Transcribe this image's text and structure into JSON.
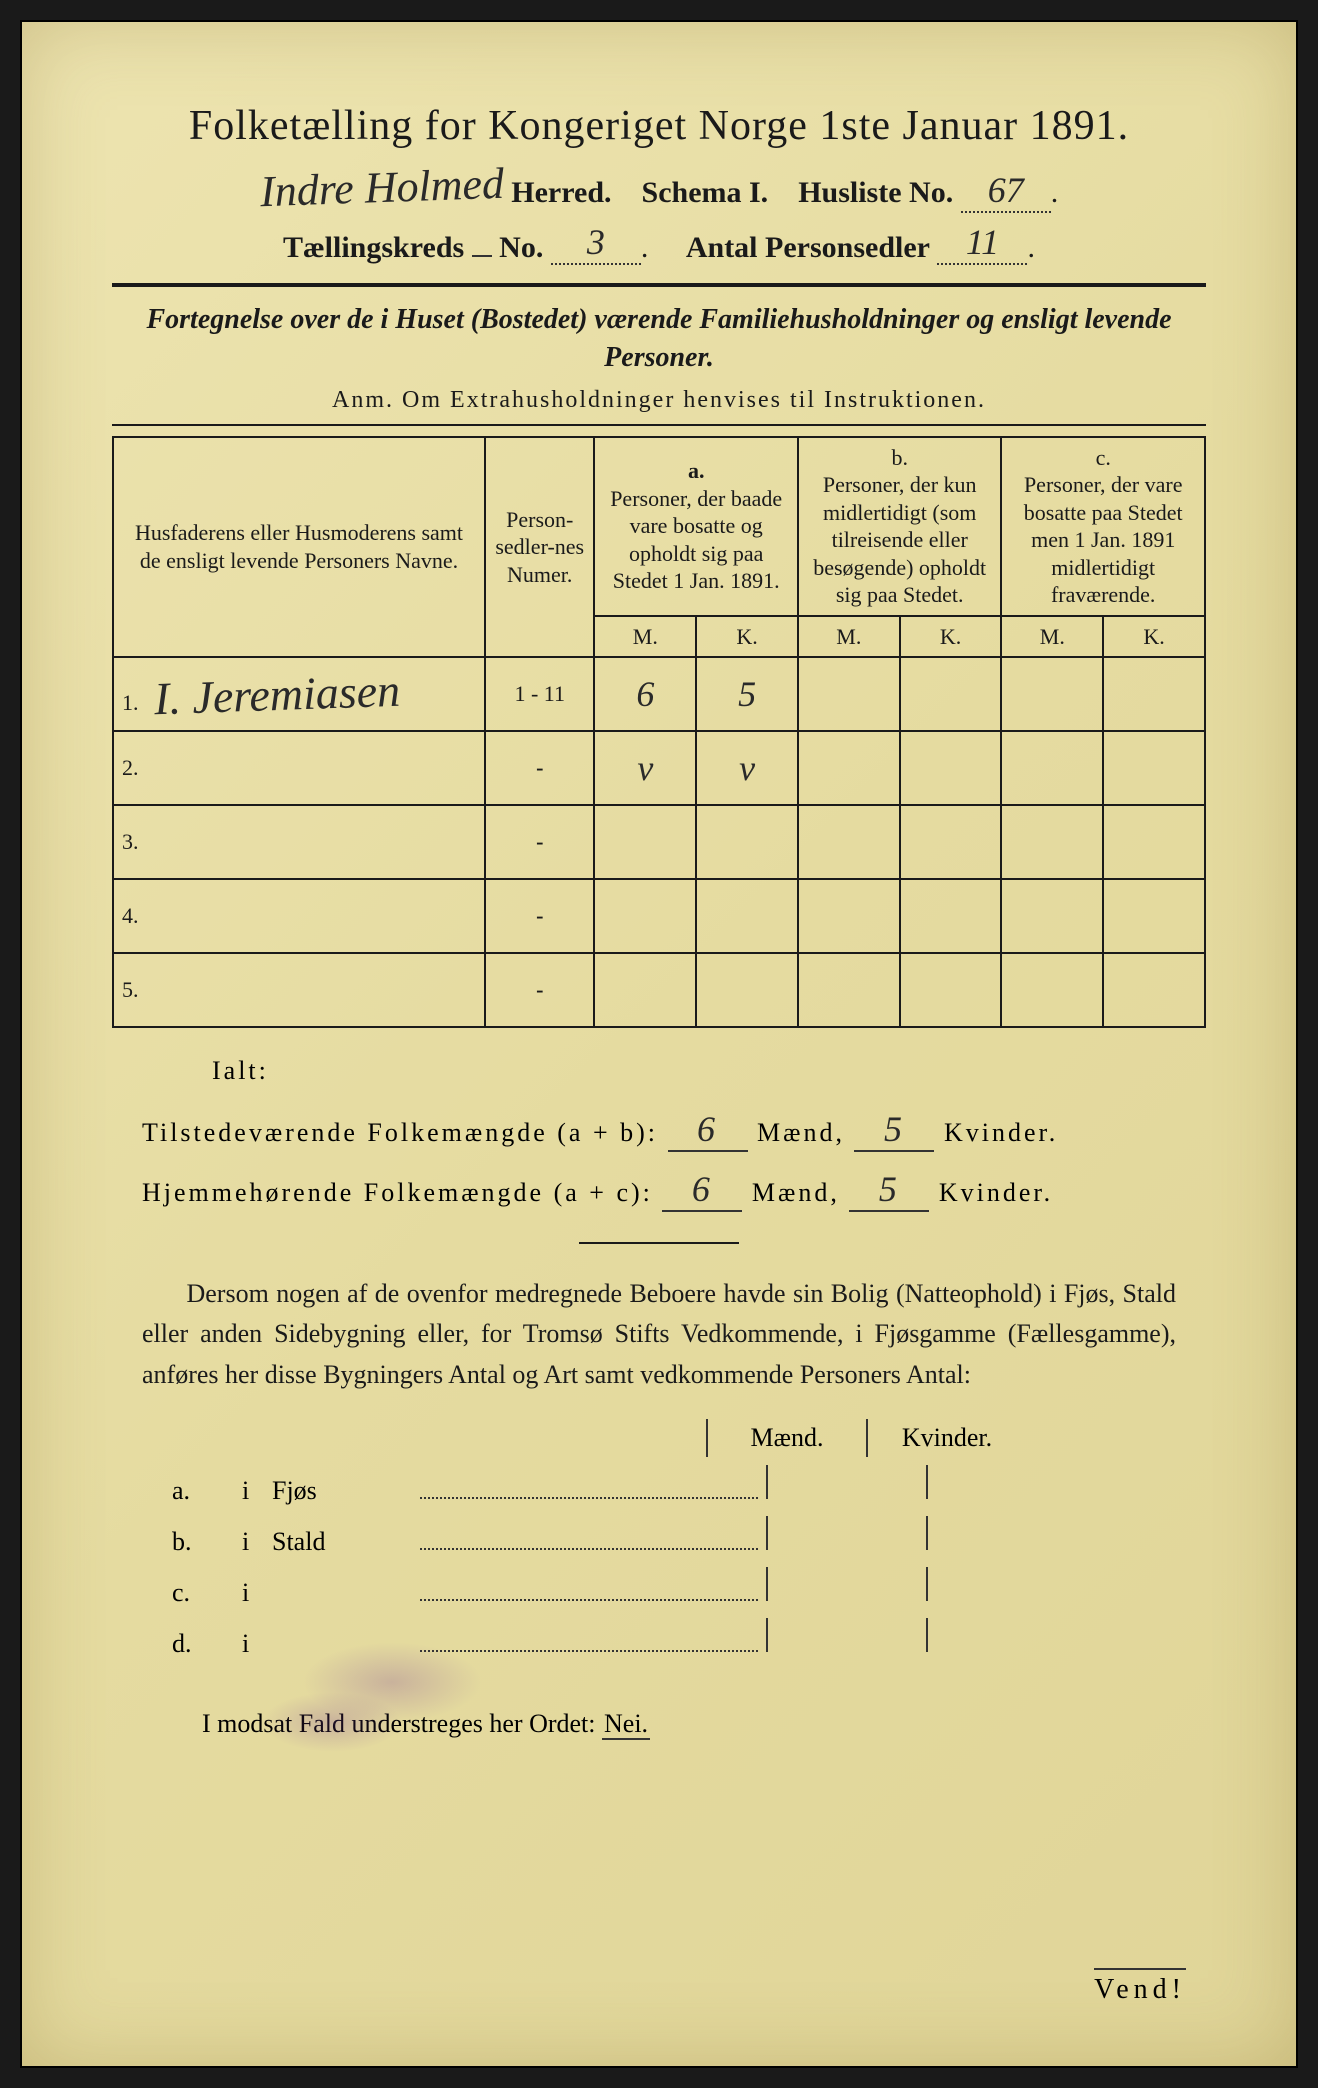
{
  "document_bg": "#e8dfa8",
  "text_color": "#1a1a1a",
  "border_color": "#1a1a1a",
  "title": "Folketælling for Kongeriget Norge 1ste Januar 1891.",
  "header": {
    "herred_handwritten": "Indre Holmed",
    "herred_label": "Herred.",
    "schema_label": "Schema I.",
    "husliste_label": "Husliste No.",
    "husliste_value": "67",
    "kreds_label": "Tællingskreds",
    "kreds_no_label": "No.",
    "kreds_value": "3",
    "antal_label": "Antal Personsedler",
    "antal_value": "11"
  },
  "fortegnelse": {
    "line": "Fortegnelse over de i Huset (Bostedet) værende Familiehusholdninger og ensligt levende Personer.",
    "anm": "Anm.  Om Extrahusholdninger henvises til Instruktionen."
  },
  "table": {
    "col_names_header": "Husfaderens eller Husmoderens samt de ensligt levende Personers Navne.",
    "col_num_header": "Person-sedler-nes Numer.",
    "col_a_label": "a.",
    "col_a_header": "Personer, der baade vare bosatte og opholdt sig paa Stedet 1 Jan. 1891.",
    "col_b_label": "b.",
    "col_b_header": "Personer, der kun midlertidigt (som tilreisende eller besøgende) opholdt sig paa Stedet.",
    "col_c_label": "c.",
    "col_c_header": "Personer, der vare bosatte paa Stedet men 1 Jan. 1891 midlertidigt fraværende.",
    "m_label": "M.",
    "k_label": "K.",
    "rows": [
      {
        "n": "1.",
        "name": "I. Jeremiasen",
        "num": "1 - 11",
        "a_m": "6",
        "a_k": "5",
        "b_m": "",
        "b_k": "",
        "c_m": "",
        "c_k": ""
      },
      {
        "n": "2.",
        "name": "",
        "num": "-",
        "a_m": "v",
        "a_k": "v",
        "b_m": "",
        "b_k": "",
        "c_m": "",
        "c_k": ""
      },
      {
        "n": "3.",
        "name": "",
        "num": "-",
        "a_m": "",
        "a_k": "",
        "b_m": "",
        "b_k": "",
        "c_m": "",
        "c_k": ""
      },
      {
        "n": "4.",
        "name": "",
        "num": "-",
        "a_m": "",
        "a_k": "",
        "b_m": "",
        "b_k": "",
        "c_m": "",
        "c_k": ""
      },
      {
        "n": "5.",
        "name": "",
        "num": "-",
        "a_m": "",
        "a_k": "",
        "b_m": "",
        "b_k": "",
        "c_m": "",
        "c_k": ""
      }
    ]
  },
  "totals": {
    "ialt_label": "Ialt:",
    "line1_label": "Tilstedeværende Folkemængde (a + b):",
    "line1_m": "6",
    "line1_k": "5",
    "line2_label": "Hjemmehørende Folkemængde (a + c):",
    "line2_m": "6",
    "line2_k": "5",
    "maend_label": "Mænd,",
    "kvinder_label": "Kvinder."
  },
  "dersom_text": "Dersom nogen af de ovenfor medregnede Beboere havde sin Bolig (Natteophold) i Fjøs, Stald eller anden Sidebygning eller, for Tromsø Stifts Vedkommende, i Fjøsgamme (Fællesgamme), anføres her disse Bygningers Antal og Art samt vedkommende Personers Antal:",
  "side_section": {
    "maend": "Mænd.",
    "kvinder": "Kvinder.",
    "rows": [
      {
        "letter": "a.",
        "i": "i",
        "name": "Fjøs"
      },
      {
        "letter": "b.",
        "i": "i",
        "name": "Stald"
      },
      {
        "letter": "c.",
        "i": "i",
        "name": ""
      },
      {
        "letter": "d.",
        "i": "i",
        "name": ""
      }
    ]
  },
  "nei_line": "I modsat Fald understreges her Ordet:",
  "nei_word": "Nei.",
  "vend": "Vend!"
}
